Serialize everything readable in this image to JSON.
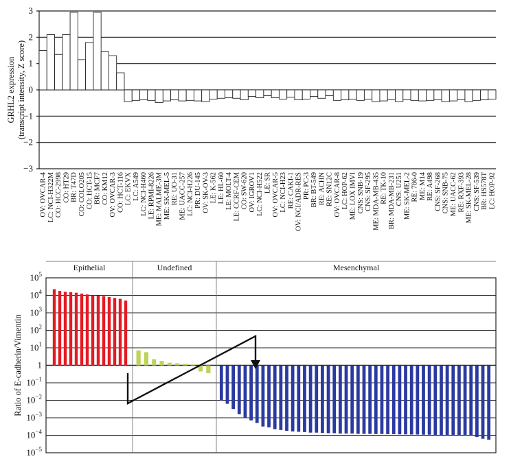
{
  "chart_data": [
    {
      "type": "bar",
      "ylabel": "GRHL2 expression\n(transcript intensity, Z score)",
      "ylim": [
        -3,
        3
      ],
      "yticks": [
        "3",
        "2",
        "1",
        "0",
        "−1",
        "−2",
        "−3"
      ],
      "grid": true,
      "categories": [
        "OV: OVCAR-4",
        "LC: NCI-H322M",
        "CO: HCC-2998",
        "CO: HT29",
        "BR: T47D",
        "CO: COLO205",
        "CO: HCT-15",
        "BR: MCF7",
        "CO: KM12",
        "OV: OVCAR-3",
        "CO: HCT-116",
        "LC: EKVX",
        "LC: A549",
        "LC: NCI-H460",
        "LE: RPMI-8226",
        "ME: MALME-3M",
        "ME: SK-MEL-5",
        "RE: UO-31",
        "ME: UACC-257",
        "LC: NCI-H226",
        "PR: DU-145",
        "OV: SK-OV-3",
        "LE: K-562",
        "LE: HL-60",
        "LE: MOLT-4",
        "LE: CCRF-CEM",
        "CO: SW-620",
        "OV: IGROV1",
        "LC: NCI-H522",
        "LE: SR",
        "OV: OVCAR-5",
        "LC: NCI-H23",
        "RE: CAKI-1",
        "OV: NCI/ADR-RES",
        "PR: PC-3",
        "BR: BT-549",
        "RE: ACHN",
        "RE: SN12C",
        "OV: OVCAR-8",
        "LC: HOP-62",
        "ME: LOX IMVI",
        "CNS: SNB-19",
        "CNS: SF-295",
        "ME: MDA-MB-435",
        "RE: TK-10",
        "BR: MDA-MB-231",
        "CNS: U251",
        "ME: SK-MEL-2",
        "RE: 786-0",
        "ME: M14",
        "RE: A498",
        "CNS: SF-268",
        "CNS: SNB-75",
        "ME: UACC-62",
        "RE: RXF-393",
        "ME: SK-MEL-28",
        "CNS: SF-539",
        "BR: HS578T",
        "LC: HOP-92"
      ],
      "values": [
        1.5,
        2.1,
        1.35,
        2.1,
        2.95,
        1.15,
        1.8,
        2.95,
        1.45,
        1.3,
        0.65,
        -0.45,
        -0.4,
        -0.38,
        -0.4,
        -0.48,
        -0.42,
        -0.38,
        -0.42,
        -0.4,
        -0.42,
        -0.45,
        -0.35,
        -0.32,
        -0.3,
        -0.32,
        -0.38,
        -0.25,
        -0.3,
        -0.22,
        -0.3,
        -0.35,
        -0.28,
        -0.38,
        -0.35,
        -0.25,
        -0.32,
        -0.22,
        -0.4,
        -0.38,
        -0.35,
        -0.4,
        -0.35,
        -0.45,
        -0.42,
        -0.38,
        -0.45,
        -0.38,
        -0.4,
        -0.42,
        -0.4,
        -0.38,
        -0.45,
        -0.42,
        -0.38,
        -0.45,
        -0.4,
        -0.38,
        -0.35
      ]
    },
    {
      "type": "bar",
      "scale": "log",
      "ylabel": "Ratio of E-cadherin/Vimentin",
      "ylim_log10": [
        -5,
        5
      ],
      "yticks": [
        {
          "base": "10",
          "exp": "5"
        },
        {
          "base": "10",
          "exp": "4"
        },
        {
          "base": "10",
          "exp": "3"
        },
        {
          "base": "10",
          "exp": "2"
        },
        {
          "base": "10",
          "exp": "1"
        },
        {
          "base": "1",
          "exp": ""
        },
        {
          "base": "10",
          "exp": "−1"
        },
        {
          "base": "10",
          "exp": "−2"
        },
        {
          "base": "10",
          "exp": "−3"
        },
        {
          "base": "10",
          "exp": "−4"
        },
        {
          "base": "10",
          "exp": "−5"
        }
      ],
      "sections": [
        {
          "name": "Epithelial",
          "color": "#e31b23",
          "log10_values": [
            4.35,
            4.25,
            4.2,
            4.18,
            4.15,
            4.1,
            4.05,
            4.0,
            3.98,
            3.95,
            3.9,
            3.85,
            3.8,
            3.7
          ]
        },
        {
          "name": "Undefined",
          "color": "#bcd45a",
          "log10_values": [
            0.85,
            0.75,
            0.35,
            0.25,
            0.15,
            0.12,
            0.08,
            0.05,
            -0.35,
            -0.45
          ]
        },
        {
          "name": "Mesenchymal",
          "color": "#2b3aa0",
          "log10_values": [
            -2.0,
            -2.2,
            -2.5,
            -2.8,
            -3.0,
            -3.15,
            -3.3,
            -3.5,
            -3.55,
            -3.65,
            -3.7,
            -3.75,
            -3.78,
            -3.8,
            -3.82,
            -3.85,
            -3.85,
            -3.87,
            -3.88,
            -3.88,
            -3.9,
            -3.9,
            -3.9,
            -3.92,
            -3.92,
            -3.92,
            -3.93,
            -3.93,
            -3.94,
            -3.94,
            -3.95,
            -3.95,
            -3.96,
            -3.96,
            -3.97,
            -3.97,
            -3.98,
            -3.98,
            -3.99,
            -3.99,
            -4.0,
            -4.0,
            -4.0,
            -4.1,
            -4.2,
            -4.25
          ]
        }
      ],
      "grid": true
    }
  ]
}
